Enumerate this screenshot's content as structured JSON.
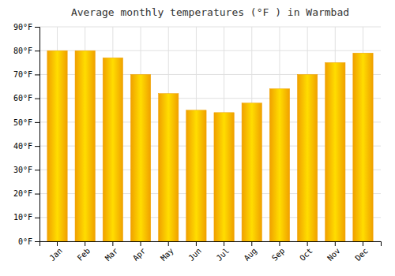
{
  "chart_data": {
    "type": "bar",
    "title": "Average monthly temperatures (°F ) in Warmbad",
    "categories": [
      "Jan",
      "Feb",
      "Mar",
      "Apr",
      "May",
      "Jun",
      "Jul",
      "Aug",
      "Sep",
      "Oct",
      "Nov",
      "Dec"
    ],
    "values": [
      80,
      80,
      77,
      70,
      62,
      55,
      54,
      58,
      64,
      70,
      75,
      79
    ],
    "color": "#F0A000",
    "ylim": [
      0,
      90
    ],
    "yticks": [
      {
        "value": 0,
        "label": "0°F"
      },
      {
        "value": 10,
        "label": "10°F"
      },
      {
        "value": 20,
        "label": "20°F"
      },
      {
        "value": 30,
        "label": "30°F"
      },
      {
        "value": 40,
        "label": "40°F"
      },
      {
        "value": 50,
        "label": "50°F"
      },
      {
        "value": 60,
        "label": "60°F"
      },
      {
        "value": 70,
        "label": "70°F"
      },
      {
        "value": 80,
        "label": "80°F"
      },
      {
        "value": 90,
        "label": "90°F"
      }
    ],
    "grid": true
  }
}
